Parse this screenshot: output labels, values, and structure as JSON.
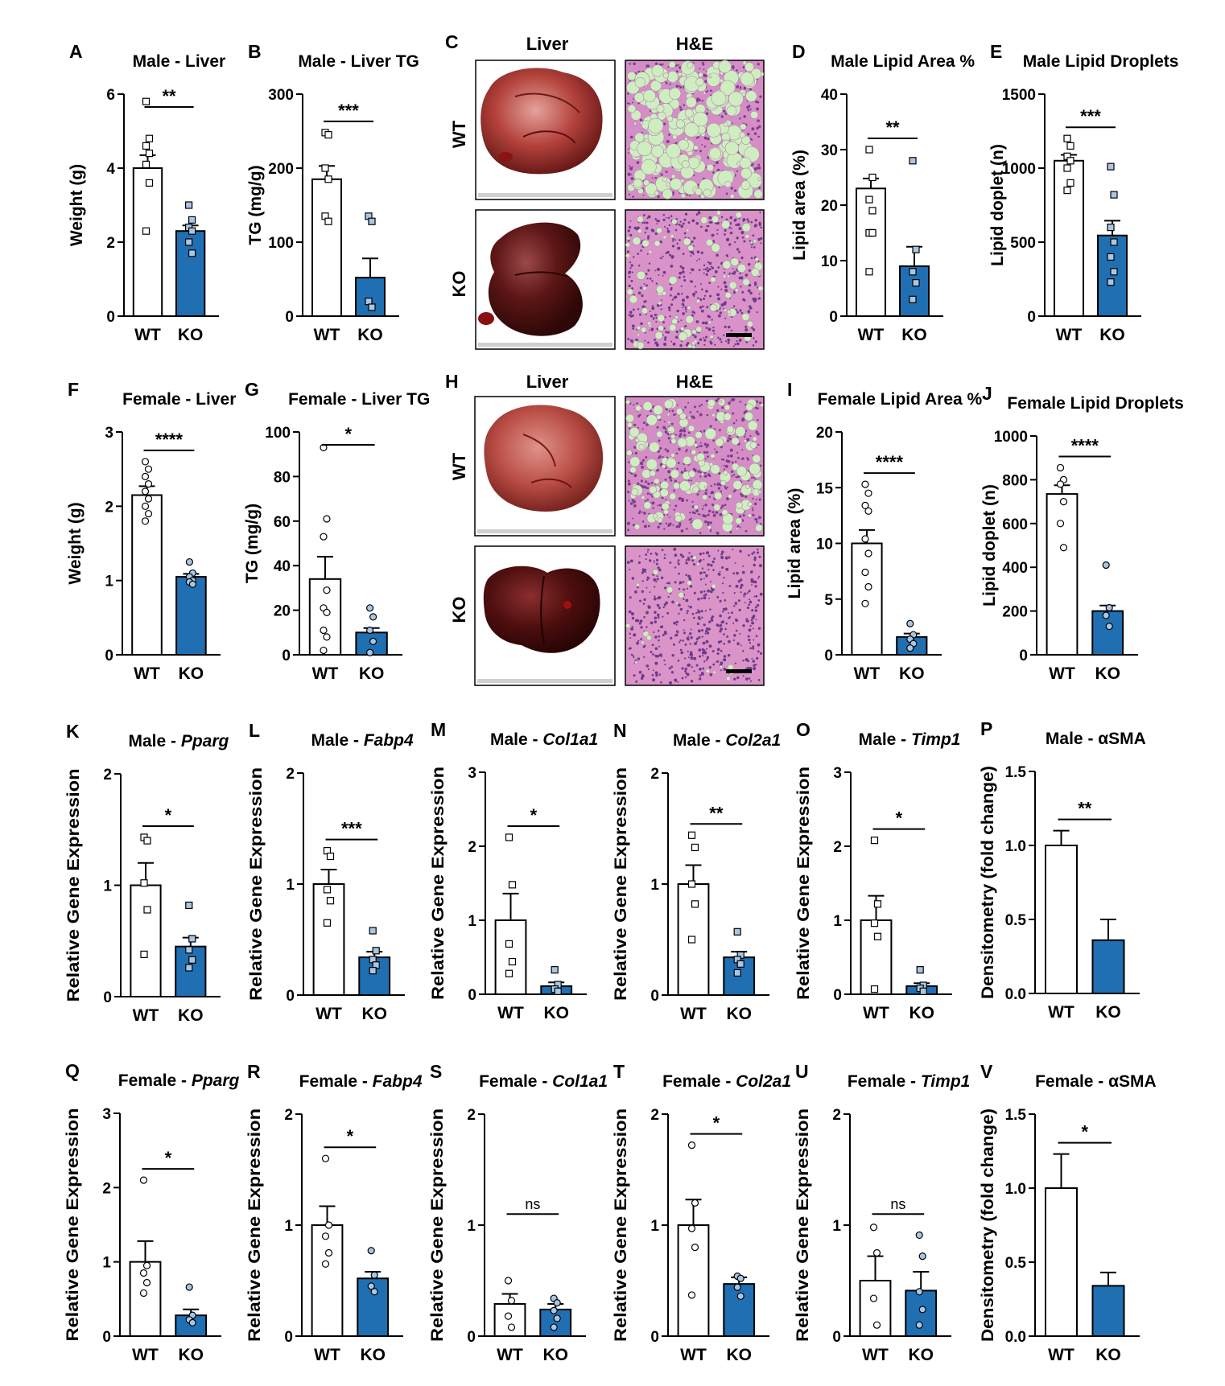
{
  "colors": {
    "wt_fill": "#ffffff",
    "ko_fill": "#1f6fb2",
    "ko_point_fill": "#a9c6e3",
    "axis": "#000000",
    "lipid_droplet": "#cfeec0",
    "he_tissue": "#d58ec5",
    "liver_pale": "#b4423c",
    "liver_dark": "#5e1616"
  },
  "image_panels": [
    {
      "letter": "C",
      "header_photo": "Liver",
      "header_stain": "H&E",
      "rows": [
        "WT",
        "KO"
      ]
    },
    {
      "letter": "H",
      "header_photo": "Liver",
      "header_stain": "H&E",
      "rows": [
        "WT",
        "KO"
      ]
    }
  ],
  "chart_data": [
    {
      "id": "A",
      "letter": "A",
      "type": "bar",
      "title": "Male - Liver",
      "ylabel": "Weight (g)",
      "categories": [
        "WT",
        "KO"
      ],
      "ylim": [
        0,
        6
      ],
      "yticks": [
        "0",
        "2",
        "4",
        "6"
      ],
      "values": [
        4.0,
        2.3
      ],
      "errors": [
        0.35,
        0.15
      ],
      "points": [
        [
          5.8,
          4.8,
          4.6,
          4.4,
          4.1,
          3.6,
          2.3
        ],
        [
          3.0,
          2.6,
          2.4,
          2.3,
          2.0,
          1.7
        ]
      ],
      "marker": "square",
      "significance": "**"
    },
    {
      "id": "B",
      "letter": "B",
      "type": "bar",
      "title": "Male - Liver TG",
      "ylabel": "TG (mg/g)",
      "categories": [
        "WT",
        "KO"
      ],
      "ylim": [
        0,
        300
      ],
      "yticks": [
        "0",
        "100",
        "200",
        "300"
      ],
      "values": [
        185,
        52
      ],
      "errors": [
        18,
        26
      ],
      "points": [
        [
          248,
          245,
          200,
          185,
          135,
          128
        ],
        [
          135,
          128,
          20,
          12
        ]
      ],
      "marker": "square",
      "significance": "***"
    },
    {
      "id": "D",
      "letter": "D",
      "type": "bar",
      "title": "Male Lipid Area %",
      "ylabel": "Lipid area (%)",
      "categories": [
        "WT",
        "KO"
      ],
      "ylim": [
        0,
        40
      ],
      "yticks": [
        "0",
        "10",
        "20",
        "30",
        "40"
      ],
      "values": [
        23,
        9
      ],
      "errors": [
        1.8,
        3.5
      ],
      "points": [
        [
          30,
          25,
          21,
          19,
          15,
          15,
          15,
          15,
          8
        ],
        [
          28,
          12,
          8,
          6,
          3
        ]
      ],
      "marker": "square",
      "significance": "**"
    },
    {
      "id": "E",
      "letter": "E",
      "type": "bar",
      "title": "Male Lipid Droplets",
      "ylabel": "Lipid doplet (n)",
      "categories": [
        "WT",
        "KO"
      ],
      "ylim": [
        0,
        1500
      ],
      "yticks": [
        "0",
        "500",
        "1000",
        "1500"
      ],
      "values": [
        1050,
        545
      ],
      "errors": [
        40,
        100
      ],
      "points": [
        [
          1200,
          1150,
          1080,
          1050,
          1000,
          900,
          850
        ],
        [
          1010,
          820,
          600,
          500,
          400,
          300,
          230
        ]
      ],
      "marker": "square",
      "significance": "***"
    },
    {
      "id": "F",
      "letter": "F",
      "type": "bar",
      "title": "Female - Liver",
      "ylabel": "Weight (g)",
      "categories": [
        "WT",
        "KO"
      ],
      "ylim": [
        0,
        3
      ],
      "yticks": [
        "0",
        "1",
        "2",
        "3"
      ],
      "values": [
        2.15,
        1.05
      ],
      "errors": [
        0.12,
        0.04
      ],
      "points": [
        [
          2.6,
          2.5,
          2.4,
          2.3,
          2.2,
          2.1,
          2.0,
          1.9,
          1.8
        ],
        [
          1.25,
          1.1,
          1.05,
          1.0,
          0.98,
          0.95
        ]
      ],
      "marker": "circle",
      "significance": "****"
    },
    {
      "id": "G",
      "letter": "G",
      "type": "bar",
      "title": "Female - Liver TG",
      "ylabel": "TG (mg/g)",
      "categories": [
        "WT",
        "KO"
      ],
      "ylim": [
        0,
        100
      ],
      "yticks": [
        "0",
        "20",
        "40",
        "60",
        "80",
        "100"
      ],
      "values": [
        34,
        10
      ],
      "errors": [
        10,
        2
      ],
      "points": [
        [
          93,
          61,
          53,
          29,
          21,
          19,
          11,
          8,
          2
        ],
        [
          21,
          17,
          11,
          6,
          1
        ]
      ],
      "marker": "circle",
      "significance": "*"
    },
    {
      "id": "I",
      "letter": "I",
      "type": "bar",
      "title": "Female Lipid Area %",
      "ylabel": "Lipid area (%)",
      "categories": [
        "WT",
        "KO"
      ],
      "ylim": [
        0,
        20
      ],
      "yticks": [
        "0",
        "5",
        "10",
        "15",
        "20"
      ],
      "values": [
        10,
        1.6
      ],
      "errors": [
        1.2,
        0.3
      ],
      "points": [
        [
          15.3,
          14.5,
          13.4,
          12.9,
          10.4,
          9.1,
          7.4,
          6.1,
          4.6
        ],
        [
          2.8,
          1.8,
          1.4,
          1.0,
          0.6
        ]
      ],
      "marker": "circle",
      "significance": "****"
    },
    {
      "id": "J",
      "letter": "J",
      "type": "bar",
      "title": "Female Lipid Droplets",
      "ylabel": "Lipid doplet (n)",
      "categories": [
        "WT",
        "KO"
      ],
      "ylim": [
        0,
        1000
      ],
      "yticks": [
        "0",
        "200",
        "400",
        "600",
        "800",
        "1000"
      ],
      "values": [
        735,
        200
      ],
      "errors": [
        40,
        25
      ],
      "points": [
        [
          855,
          800,
          780,
          700,
          600,
          490
        ],
        [
          410,
          215,
          180,
          130
        ]
      ],
      "marker": "circle",
      "significance": "****"
    },
    {
      "id": "K",
      "letter": "K",
      "type": "bar",
      "title_plain": "Male - ",
      "title_italic": "Pparg",
      "ylabel": "Relative Gene Expression",
      "categories": [
        "WT",
        "KO"
      ],
      "ylim": [
        0,
        2
      ],
      "yticks": [
        "0",
        "1",
        "2"
      ],
      "values": [
        1.0,
        0.45
      ],
      "errors": [
        0.2,
        0.08
      ],
      "points": [
        [
          1.43,
          1.4,
          1.02,
          0.78,
          0.38
        ],
        [
          0.82,
          0.52,
          0.42,
          0.33,
          0.26
        ]
      ],
      "marker": "square",
      "significance": "*"
    },
    {
      "id": "L",
      "letter": "L",
      "type": "bar",
      "title_plain": "Male - ",
      "title_italic": "Fabp4",
      "ylabel": "Relative Gene Expression",
      "categories": [
        "WT",
        "KO"
      ],
      "ylim": [
        0,
        2
      ],
      "yticks": [
        "0",
        "1",
        "2"
      ],
      "values": [
        1.0,
        0.34
      ],
      "errors": [
        0.13,
        0.05
      ],
      "points": [
        [
          1.3,
          1.25,
          0.95,
          0.85,
          0.65
        ],
        [
          0.58,
          0.4,
          0.32,
          0.27,
          0.22
        ]
      ],
      "marker": "square",
      "significance": "***"
    },
    {
      "id": "M",
      "letter": "M",
      "type": "bar",
      "title_plain": "Male - ",
      "title_italic": "Col1a1",
      "ylabel": "Relative Gene Expression",
      "categories": [
        "WT",
        "KO"
      ],
      "ylim": [
        0,
        3
      ],
      "yticks": [
        "0",
        "1",
        "2",
        "3"
      ],
      "values": [
        1.0,
        0.11
      ],
      "errors": [
        0.36,
        0.05
      ],
      "points": [
        [
          2.12,
          1.48,
          0.68,
          0.44,
          0.28
        ],
        [
          0.33,
          0.13,
          0.07,
          0.04
        ]
      ],
      "marker": "square",
      "significance": "*"
    },
    {
      "id": "N",
      "letter": "N",
      "type": "bar",
      "title_plain": "Male - ",
      "title_italic": "Col2a1",
      "ylabel": "Relative Gene Expression",
      "categories": [
        "WT",
        "KO"
      ],
      "ylim": [
        0,
        2
      ],
      "yticks": [
        "0",
        "1",
        "2"
      ],
      "values": [
        1.0,
        0.34
      ],
      "errors": [
        0.17,
        0.05
      ],
      "points": [
        [
          1.44,
          1.33,
          1.0,
          0.82,
          0.5
        ],
        [
          0.57,
          0.36,
          0.32,
          0.28,
          0.2
        ]
      ],
      "marker": "square",
      "significance": "**"
    },
    {
      "id": "O",
      "letter": "O",
      "type": "bar",
      "title_plain": "Male - ",
      "title_italic": "Timp1",
      "ylabel": "Relative Gene Expression",
      "categories": [
        "WT",
        "KO"
      ],
      "ylim": [
        0,
        3
      ],
      "yticks": [
        "0",
        "1",
        "2",
        "3"
      ],
      "values": [
        1.0,
        0.11
      ],
      "errors": [
        0.33,
        0.04
      ],
      "points": [
        [
          2.08,
          1.22,
          0.96,
          0.78,
          0.07
        ],
        [
          0.33,
          0.12,
          0.08,
          0.04
        ]
      ],
      "marker": "square",
      "significance": "*"
    },
    {
      "id": "P",
      "letter": "P",
      "type": "bar",
      "title": "Male - αSMA",
      "ylabel": "Densitometry (fold change)",
      "categories": [
        "WT",
        "KO"
      ],
      "ylim": [
        0,
        1.5
      ],
      "yticks": [
        "0.0",
        "0.5",
        "1.0",
        "1.5"
      ],
      "values": [
        1.0,
        0.36
      ],
      "errors": [
        0.1,
        0.14
      ],
      "points": [
        [],
        []
      ],
      "marker": "none",
      "significance": "**"
    },
    {
      "id": "Q",
      "letter": "Q",
      "type": "bar",
      "title_plain": "Female - ",
      "title_italic": "Pparg",
      "ylabel": "Relative Gene Expression",
      "categories": [
        "WT",
        "KO"
      ],
      "ylim": [
        0,
        3
      ],
      "yticks": [
        "0",
        "1",
        "2",
        "3"
      ],
      "values": [
        1.0,
        0.28
      ],
      "errors": [
        0.28,
        0.08
      ],
      "points": [
        [
          2.1,
          0.95,
          0.85,
          0.72,
          0.58
        ],
        [
          0.66,
          0.28,
          0.22,
          0.18
        ]
      ],
      "marker": "circle",
      "significance": "*"
    },
    {
      "id": "R",
      "letter": "R",
      "type": "bar",
      "title_plain": "Female - ",
      "title_italic": "Fabp4",
      "ylabel": "Relative Gene Expression",
      "categories": [
        "WT",
        "KO"
      ],
      "ylim": [
        0,
        2
      ],
      "yticks": [
        "0",
        "1",
        "2"
      ],
      "values": [
        1.0,
        0.52
      ],
      "errors": [
        0.17,
        0.06
      ],
      "points": [
        [
          1.6,
          1.0,
          0.9,
          0.75,
          0.65
        ],
        [
          0.77,
          0.55,
          0.45,
          0.4
        ]
      ],
      "marker": "circle",
      "significance": "*"
    },
    {
      "id": "S",
      "letter": "S",
      "type": "bar",
      "title_plain": "Female - ",
      "title_italic": "Col1a1",
      "ylabel": "Relative Gene Expression",
      "categories": [
        "WT",
        "KO"
      ],
      "ylim": [
        0,
        2
      ],
      "yticks": [
        "0",
        "1",
        "2"
      ],
      "values": [
        0.29,
        0.24
      ],
      "errors": [
        0.09,
        0.05
      ],
      "points": [
        [
          0.5,
          0.32,
          0.18,
          0.08
        ],
        [
          0.34,
          0.3,
          0.23,
          0.16,
          0.08
        ]
      ],
      "marker": "circle",
      "significance": "ns"
    },
    {
      "id": "T",
      "letter": "T",
      "type": "bar",
      "title_plain": "Female - ",
      "title_italic": "Col2a1",
      "ylabel": "Relative Gene Expression",
      "categories": [
        "WT",
        "KO"
      ],
      "ylim": [
        0,
        2
      ],
      "yticks": [
        "0",
        "1",
        "2"
      ],
      "values": [
        1.0,
        0.47
      ],
      "errors": [
        0.23,
        0.06
      ],
      "points": [
        [
          1.72,
          1.2,
          0.97,
          0.8,
          0.37
        ],
        [
          0.54,
          0.52,
          0.44,
          0.36
        ]
      ],
      "marker": "circle",
      "significance": "*"
    },
    {
      "id": "U",
      "letter": "U",
      "type": "bar",
      "title_plain": "Female - ",
      "title_italic": "Timp1",
      "ylabel": "Relative Gene Expression",
      "categories": [
        "WT",
        "KO"
      ],
      "ylim": [
        0,
        2
      ],
      "yticks": [
        "0",
        "1",
        "2"
      ],
      "values": [
        0.5,
        0.41
      ],
      "errors": [
        0.22,
        0.17
      ],
      "points": [
        [
          0.98,
          0.75,
          0.34,
          0.1
        ],
        [
          0.91,
          0.72,
          0.4,
          0.24,
          0.1
        ]
      ],
      "marker": "circle",
      "significance": "ns"
    },
    {
      "id": "V",
      "letter": "V",
      "type": "bar",
      "title": "Female - αSMA",
      "ylabel": "Densitometry (fold change)",
      "categories": [
        "WT",
        "KO"
      ],
      "ylim": [
        0,
        1.5
      ],
      "yticks": [
        "0.0",
        "0.5",
        "1.0",
        "1.5"
      ],
      "values": [
        1.0,
        0.34
      ],
      "errors": [
        0.23,
        0.09
      ],
      "points": [
        [],
        []
      ],
      "marker": "none",
      "significance": "*"
    }
  ]
}
